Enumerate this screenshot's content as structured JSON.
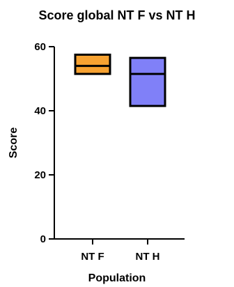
{
  "chart_data": {
    "type": "box",
    "title": "Score global NT F vs NT H",
    "xlabel": "Population",
    "ylabel": "Score",
    "ylim": [
      0,
      60
    ],
    "yticks": [
      0,
      20,
      40,
      60
    ],
    "grid": false,
    "categories": [
      "NT F",
      "NT H"
    ],
    "series": [
      {
        "category": "NT F",
        "min": 51.5,
        "median": 54.0,
        "max": 57.5,
        "color": "#f7a231"
      },
      {
        "category": "NT H",
        "min": 41.5,
        "median": 51.5,
        "max": 56.5,
        "color": "#8080f8"
      }
    ]
  }
}
